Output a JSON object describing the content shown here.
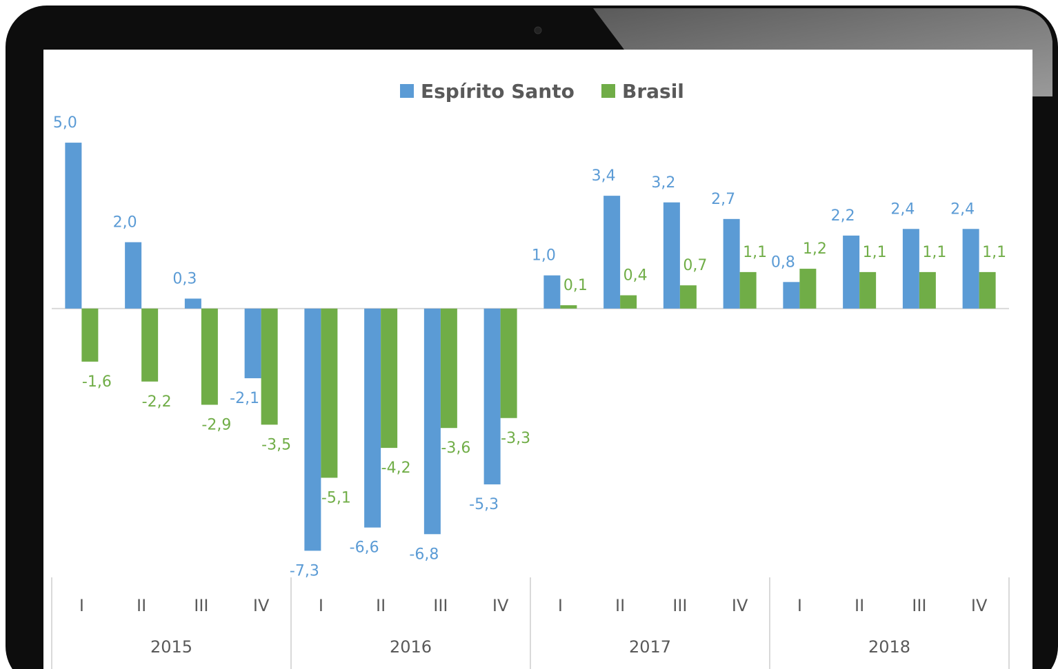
{
  "chart_data": {
    "type": "bar",
    "categories": [
      "I",
      "II",
      "III",
      "IV",
      "I",
      "II",
      "III",
      "IV",
      "I",
      "II",
      "III",
      "IV",
      "I",
      "II",
      "III",
      "IV"
    ],
    "year_groups": [
      "2015",
      "2016",
      "2017",
      "2018"
    ],
    "series": [
      {
        "name": "Espírito Santo",
        "color": "#5b9bd5",
        "values": [
          5.0,
          2.0,
          0.3,
          -2.1,
          -7.3,
          -6.6,
          -6.8,
          -5.3,
          1.0,
          3.4,
          3.2,
          2.7,
          0.8,
          2.2,
          2.4,
          2.4
        ],
        "value_labels": [
          "5,0",
          "2,0",
          "0,3",
          "-2,1",
          "-7,3",
          "-6,6",
          "-6,8",
          "-5,3",
          "1,0",
          "3,4",
          "3,2",
          "2,7",
          "0,8",
          "2,2",
          "2,4",
          "2,4"
        ]
      },
      {
        "name": "Brasil",
        "color": "#70ad47",
        "values": [
          -1.6,
          -2.2,
          -2.9,
          -3.5,
          -5.1,
          -4.2,
          -3.6,
          -3.3,
          0.1,
          0.4,
          0.7,
          1.1,
          1.2,
          1.1,
          1.1,
          1.1
        ],
        "value_labels": [
          "-1,6",
          "-2,2",
          "-2,9",
          "-3,5",
          "-5,1",
          "-4,2",
          "-3,6",
          "-3,3",
          "0,1",
          "0,4",
          "0,7",
          "1,1",
          "1,2",
          "1,1",
          "1,1",
          "1,1"
        ]
      }
    ],
    "ylim": [
      -7.5,
      5.5
    ],
    "legend": "top"
  }
}
